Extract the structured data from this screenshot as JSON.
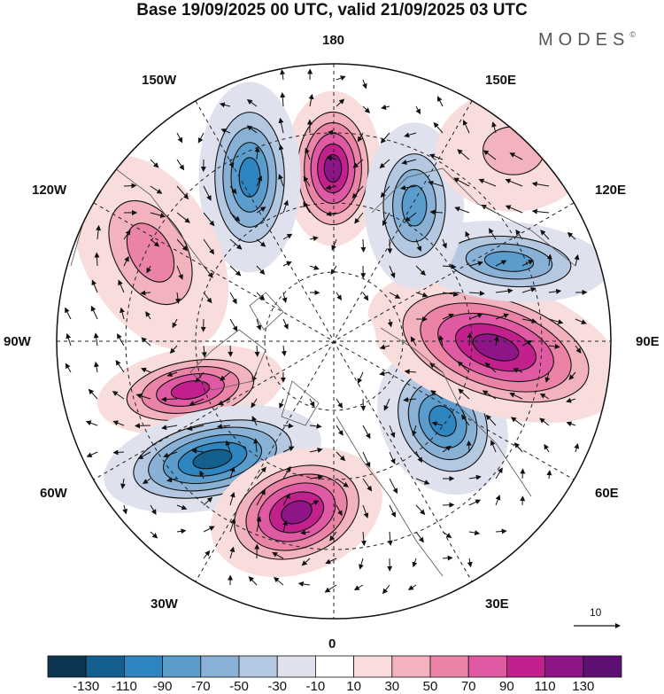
{
  "title": "Base 19/09/2025 00 UTC, valid 21/09/2025 03 UTC",
  "logo": "MODES",
  "logo_mark": "©",
  "longitude_labels": {
    "lon_180": "180",
    "lon_150e": "150E",
    "lon_120e": "120E",
    "lon_90e": "90E",
    "lon_60e": "60E",
    "lon_30e": "30E",
    "lon_0": "0",
    "lon_30w": "30W",
    "lon_60w": "60W",
    "lon_90w": "90W",
    "lon_120w": "120W",
    "lon_150w": "150W"
  },
  "vector_scale": {
    "label": "10"
  },
  "colorbar": {
    "labels": [
      "-130",
      "-110",
      "-90",
      "-70",
      "-50",
      "-30",
      "-10",
      "10",
      "30",
      "50",
      "70",
      "90",
      "110",
      "130"
    ],
    "colors": [
      "#0b3550",
      "#13608f",
      "#2f85bf",
      "#5a9ccc",
      "#89b1d6",
      "#b4c8e2",
      "#dfe1ef",
      "#ffffff",
      "#f9dcdc",
      "#f2b2be",
      "#eb83a6",
      "#e05aa3",
      "#c1208d",
      "#8e1587",
      "#5e0f74"
    ]
  },
  "features": [
    {
      "name": "anomaly-positive-180",
      "sign": "positive",
      "magnitude": 120
    },
    {
      "name": "anomaly-negative-150w",
      "sign": "negative",
      "magnitude": 100
    },
    {
      "name": "anomaly-positive-120w",
      "sign": "positive",
      "magnitude": 50
    },
    {
      "name": "anomaly-positive-80w",
      "sign": "positive",
      "magnitude": 90
    },
    {
      "name": "anomaly-negative-50w",
      "sign": "negative",
      "magnitude": 120
    },
    {
      "name": "anomaly-positive-20w",
      "sign": "positive",
      "magnitude": 120
    },
    {
      "name": "anomaly-negative-50e",
      "sign": "negative",
      "magnitude": 90
    },
    {
      "name": "anomaly-positive-90e",
      "sign": "positive",
      "magnitude": 120
    },
    {
      "name": "anomaly-negative-120e",
      "sign": "negative",
      "magnitude": 70
    },
    {
      "name": "anomaly-negative-155e",
      "sign": "negative",
      "magnitude": 80
    },
    {
      "name": "anomaly-positive-140e",
      "sign": "positive",
      "magnitude": 40
    }
  ]
}
